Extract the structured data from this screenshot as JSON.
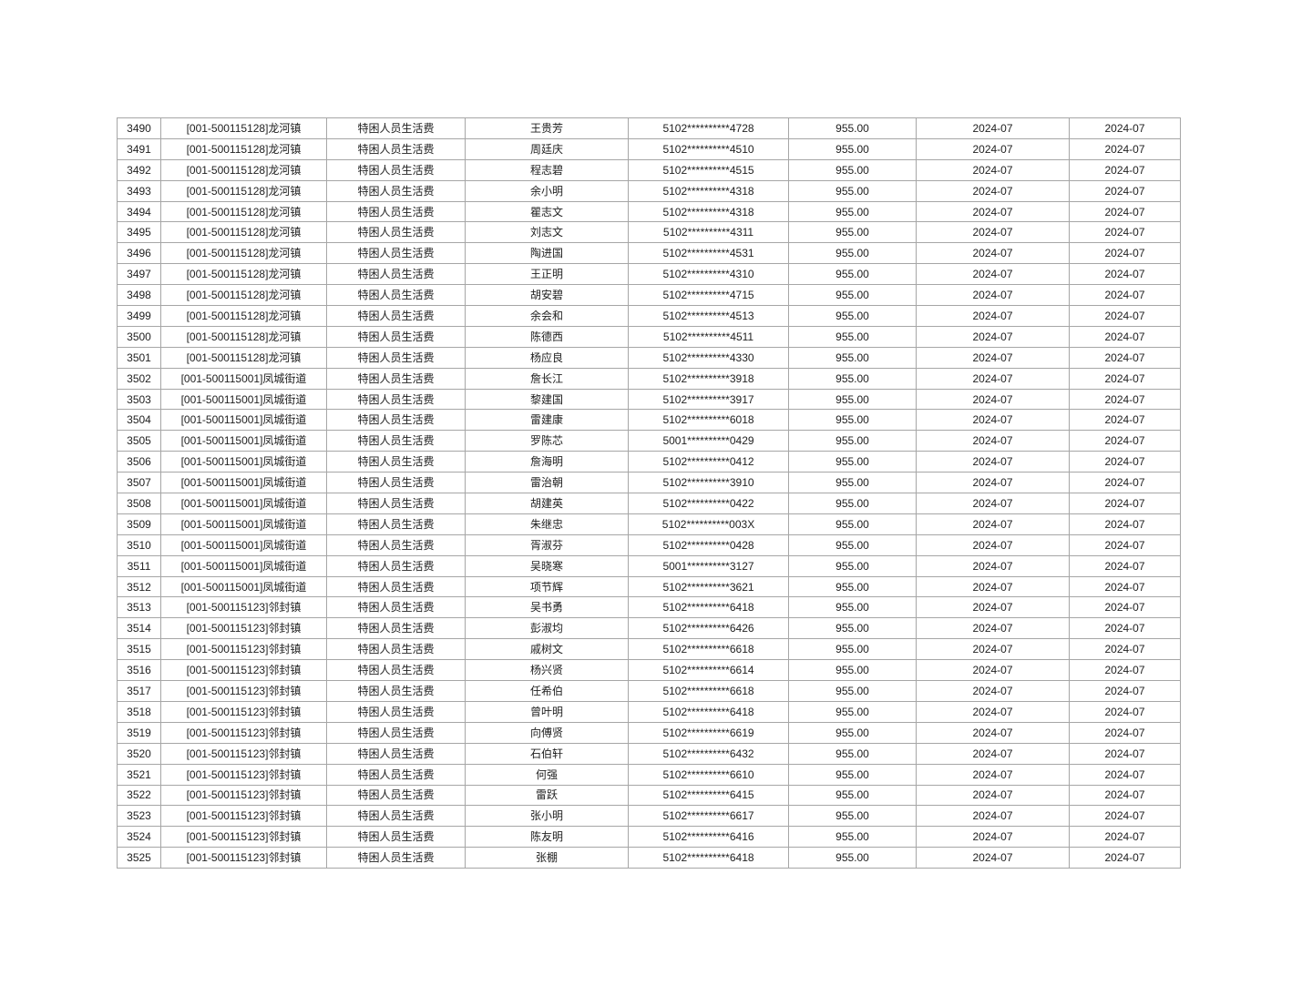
{
  "document": {
    "background_color": "#ffffff",
    "table": {
      "border_color": "#a6a6a6",
      "text_color": "#212121",
      "column_semantics": [
        "row-number-cell",
        "funding-unit-cell",
        "subsidy-item-cell",
        "person-name-cell",
        "masked-id-number-cell",
        "amount-cell",
        "grant-month-cell",
        "issue-month-cell"
      ],
      "rows": [
        [
          "3490",
          "[001-500115128]龙河镇",
          "特困人员生活费",
          "王贵芳",
          "5102**********4728",
          "955.00",
          "2024-07",
          "2024-07"
        ],
        [
          "3491",
          "[001-500115128]龙河镇",
          "特困人员生活费",
          "周廷庆",
          "5102**********4510",
          "955.00",
          "2024-07",
          "2024-07"
        ],
        [
          "3492",
          "[001-500115128]龙河镇",
          "特困人员生活费",
          "程志碧",
          "5102**********4515",
          "955.00",
          "2024-07",
          "2024-07"
        ],
        [
          "3493",
          "[001-500115128]龙河镇",
          "特困人员生活费",
          "余小明",
          "5102**********4318",
          "955.00",
          "2024-07",
          "2024-07"
        ],
        [
          "3494",
          "[001-500115128]龙河镇",
          "特困人员生活费",
          "瞿志文",
          "5102**********4318",
          "955.00",
          "2024-07",
          "2024-07"
        ],
        [
          "3495",
          "[001-500115128]龙河镇",
          "特困人员生活费",
          "刘志文",
          "5102**********4311",
          "955.00",
          "2024-07",
          "2024-07"
        ],
        [
          "3496",
          "[001-500115128]龙河镇",
          "特困人员生活费",
          "陶进国",
          "5102**********4531",
          "955.00",
          "2024-07",
          "2024-07"
        ],
        [
          "3497",
          "[001-500115128]龙河镇",
          "特困人员生活费",
          "王正明",
          "5102**********4310",
          "955.00",
          "2024-07",
          "2024-07"
        ],
        [
          "3498",
          "[001-500115128]龙河镇",
          "特困人员生活费",
          "胡安碧",
          "5102**********4715",
          "955.00",
          "2024-07",
          "2024-07"
        ],
        [
          "3499",
          "[001-500115128]龙河镇",
          "特困人员生活费",
          "余会和",
          "5102**********4513",
          "955.00",
          "2024-07",
          "2024-07"
        ],
        [
          "3500",
          "[001-500115128]龙河镇",
          "特困人员生活费",
          "陈德西",
          "5102**********4511",
          "955.00",
          "2024-07",
          "2024-07"
        ],
        [
          "3501",
          "[001-500115128]龙河镇",
          "特困人员生活费",
          "杨应良",
          "5102**********4330",
          "955.00",
          "2024-07",
          "2024-07"
        ],
        [
          "3502",
          "[001-500115001]凤城街道",
          "特困人员生活费",
          "詹长江",
          "5102**********3918",
          "955.00",
          "2024-07",
          "2024-07"
        ],
        [
          "3503",
          "[001-500115001]凤城街道",
          "特困人员生活费",
          "黎建国",
          "5102**********3917",
          "955.00",
          "2024-07",
          "2024-07"
        ],
        [
          "3504",
          "[001-500115001]凤城街道",
          "特困人员生活费",
          "雷建康",
          "5102**********6018",
          "955.00",
          "2024-07",
          "2024-07"
        ],
        [
          "3505",
          "[001-500115001]凤城街道",
          "特困人员生活费",
          "罗陈芯",
          "5001**********0429",
          "955.00",
          "2024-07",
          "2024-07"
        ],
        [
          "3506",
          "[001-500115001]凤城街道",
          "特困人员生活费",
          "詹海明",
          "5102**********0412",
          "955.00",
          "2024-07",
          "2024-07"
        ],
        [
          "3507",
          "[001-500115001]凤城街道",
          "特困人员生活费",
          "雷治朝",
          "5102**********3910",
          "955.00",
          "2024-07",
          "2024-07"
        ],
        [
          "3508",
          "[001-500115001]凤城街道",
          "特困人员生活费",
          "胡建英",
          "5102**********0422",
          "955.00",
          "2024-07",
          "2024-07"
        ],
        [
          "3509",
          "[001-500115001]凤城街道",
          "特困人员生活费",
          "朱继忠",
          "5102**********003X",
          "955.00",
          "2024-07",
          "2024-07"
        ],
        [
          "3510",
          "[001-500115001]凤城街道",
          "特困人员生活费",
          "胥淑芬",
          "5102**********0428",
          "955.00",
          "2024-07",
          "2024-07"
        ],
        [
          "3511",
          "[001-500115001]凤城街道",
          "特困人员生活费",
          "吴晓寒",
          "5001**********3127",
          "955.00",
          "2024-07",
          "2024-07"
        ],
        [
          "3512",
          "[001-500115001]凤城街道",
          "特困人员生活费",
          "项节辉",
          "5102**********3621",
          "955.00",
          "2024-07",
          "2024-07"
        ],
        [
          "3513",
          "[001-500115123]邻封镇",
          "特困人员生活费",
          "吴书勇",
          "5102**********6418",
          "955.00",
          "2024-07",
          "2024-07"
        ],
        [
          "3514",
          "[001-500115123]邻封镇",
          "特困人员生活费",
          "彭淑均",
          "5102**********6426",
          "955.00",
          "2024-07",
          "2024-07"
        ],
        [
          "3515",
          "[001-500115123]邻封镇",
          "特困人员生活费",
          "戚树文",
          "5102**********6618",
          "955.00",
          "2024-07",
          "2024-07"
        ],
        [
          "3516",
          "[001-500115123]邻封镇",
          "特困人员生活费",
          "杨兴贤",
          "5102**********6614",
          "955.00",
          "2024-07",
          "2024-07"
        ],
        [
          "3517",
          "[001-500115123]邻封镇",
          "特困人员生活费",
          "任希伯",
          "5102**********6618",
          "955.00",
          "2024-07",
          "2024-07"
        ],
        [
          "3518",
          "[001-500115123]邻封镇",
          "特困人员生活费",
          "曾叶明",
          "5102**********6418",
          "955.00",
          "2024-07",
          "2024-07"
        ],
        [
          "3519",
          "[001-500115123]邻封镇",
          "特困人员生活费",
          "向傅贤",
          "5102**********6619",
          "955.00",
          "2024-07",
          "2024-07"
        ],
        [
          "3520",
          "[001-500115123]邻封镇",
          "特困人员生活费",
          "石伯轩",
          "5102**********6432",
          "955.00",
          "2024-07",
          "2024-07"
        ],
        [
          "3521",
          "[001-500115123]邻封镇",
          "特困人员生活费",
          "何强",
          "5102**********6610",
          "955.00",
          "2024-07",
          "2024-07"
        ],
        [
          "3522",
          "[001-500115123]邻封镇",
          "特困人员生活费",
          "雷跃",
          "5102**********6415",
          "955.00",
          "2024-07",
          "2024-07"
        ],
        [
          "3523",
          "[001-500115123]邻封镇",
          "特困人员生活费",
          "张小明",
          "5102**********6617",
          "955.00",
          "2024-07",
          "2024-07"
        ],
        [
          "3524",
          "[001-500115123]邻封镇",
          "特困人员生活费",
          "陈友明",
          "5102**********6416",
          "955.00",
          "2024-07",
          "2024-07"
        ],
        [
          "3525",
          "[001-500115123]邻封镇",
          "特困人员生活费",
          "张棚",
          "5102**********6418",
          "955.00",
          "2024-07",
          "2024-07"
        ]
      ]
    }
  }
}
